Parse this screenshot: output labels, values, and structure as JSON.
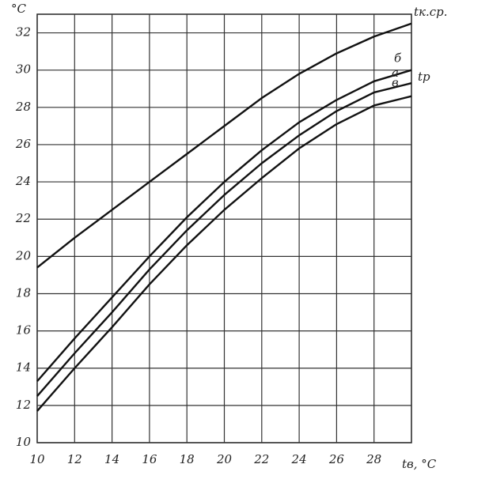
{
  "chart_data": {
    "type": "line",
    "y_label": "°C",
    "x_label": "tв, °C",
    "annotations": [
      "tр"
    ],
    "x": [
      10,
      12,
      14,
      16,
      18,
      20,
      22,
      24,
      26,
      28,
      30
    ],
    "series": [
      {
        "name": "tк.ср.",
        "color": "#111111",
        "values": [
          19.4,
          21,
          22.5,
          24,
          25.5,
          27,
          28.5,
          29.8,
          30.9,
          31.8,
          32.5
        ]
      },
      {
        "name": "б",
        "color": "#111111",
        "values": [
          13.3,
          15.6,
          17.8,
          20,
          22.1,
          24,
          25.7,
          27.2,
          28.4,
          29.4,
          30.0
        ]
      },
      {
        "name": "а",
        "color": "#111111",
        "values": [
          12.5,
          14.8,
          17,
          19.3,
          21.4,
          23.3,
          25,
          26.5,
          27.8,
          28.8,
          29.3
        ]
      },
      {
        "name": "в",
        "color": "#111111",
        "values": [
          11.7,
          14,
          16.2,
          18.5,
          20.6,
          22.5,
          24.2,
          25.8,
          27.1,
          28.1,
          28.6
        ]
      }
    ],
    "xlim": [
      10,
      30
    ],
    "xticks": [
      10,
      12,
      14,
      16,
      18,
      20,
      22,
      24,
      26,
      28
    ],
    "ylim": [
      10,
      33
    ],
    "yticks": [
      10,
      12,
      14,
      16,
      18,
      20,
      22,
      24,
      26,
      28,
      30,
      32
    ],
    "grid": true
  }
}
